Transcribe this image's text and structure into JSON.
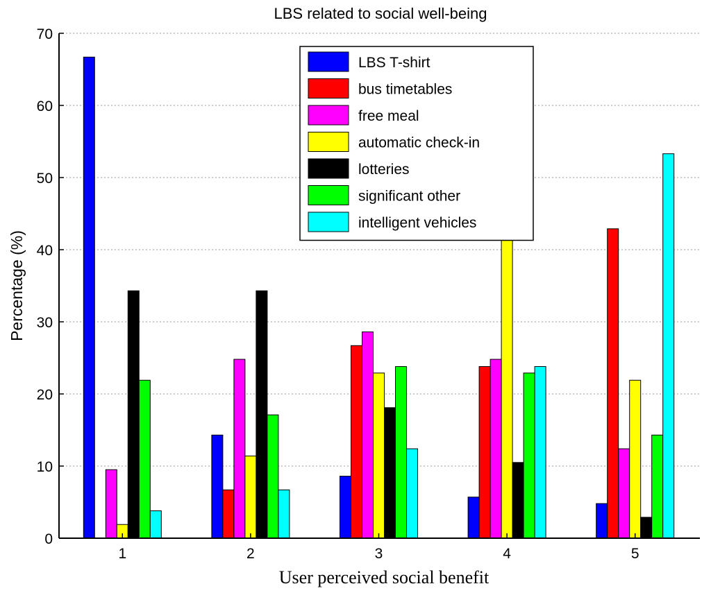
{
  "chart_data": {
    "type": "bar",
    "title": "LBS related to social well-being",
    "xlabel": "User perceived social benefit",
    "ylabel": "Percentage (%)",
    "categories": [
      "1",
      "2",
      "3",
      "4",
      "5"
    ],
    "ylim": [
      0,
      70
    ],
    "yticks": [
      "0",
      "10",
      "20",
      "30",
      "40",
      "50",
      "60",
      "70"
    ],
    "grid": true,
    "legend_position": "top-center",
    "series": [
      {
        "name": "LBS T-shirt",
        "color": "#0000ff",
        "values": [
          66.7,
          14.3,
          8.6,
          5.7,
          4.8
        ]
      },
      {
        "name": "bus timetables",
        "color": "#ff0000",
        "values": [
          0,
          6.7,
          26.7,
          23.8,
          42.9
        ]
      },
      {
        "name": "free meal",
        "color": "#ff00ff",
        "values": [
          9.5,
          24.8,
          28.6,
          24.8,
          12.4
        ]
      },
      {
        "name": "automatic check-in",
        "color": "#ffff00",
        "values": [
          1.9,
          11.4,
          22.9,
          41.9,
          21.9
        ]
      },
      {
        "name": "lotteries",
        "color": "#000000",
        "values": [
          34.3,
          34.3,
          18.1,
          10.5,
          2.9
        ]
      },
      {
        "name": "significant other",
        "color": "#00ff00",
        "values": [
          21.9,
          17.1,
          23.8,
          22.9,
          14.3
        ]
      },
      {
        "name": "intelligent vehicles",
        "color": "#00ffff",
        "values": [
          3.8,
          6.7,
          12.4,
          23.8,
          53.3
        ]
      }
    ]
  }
}
